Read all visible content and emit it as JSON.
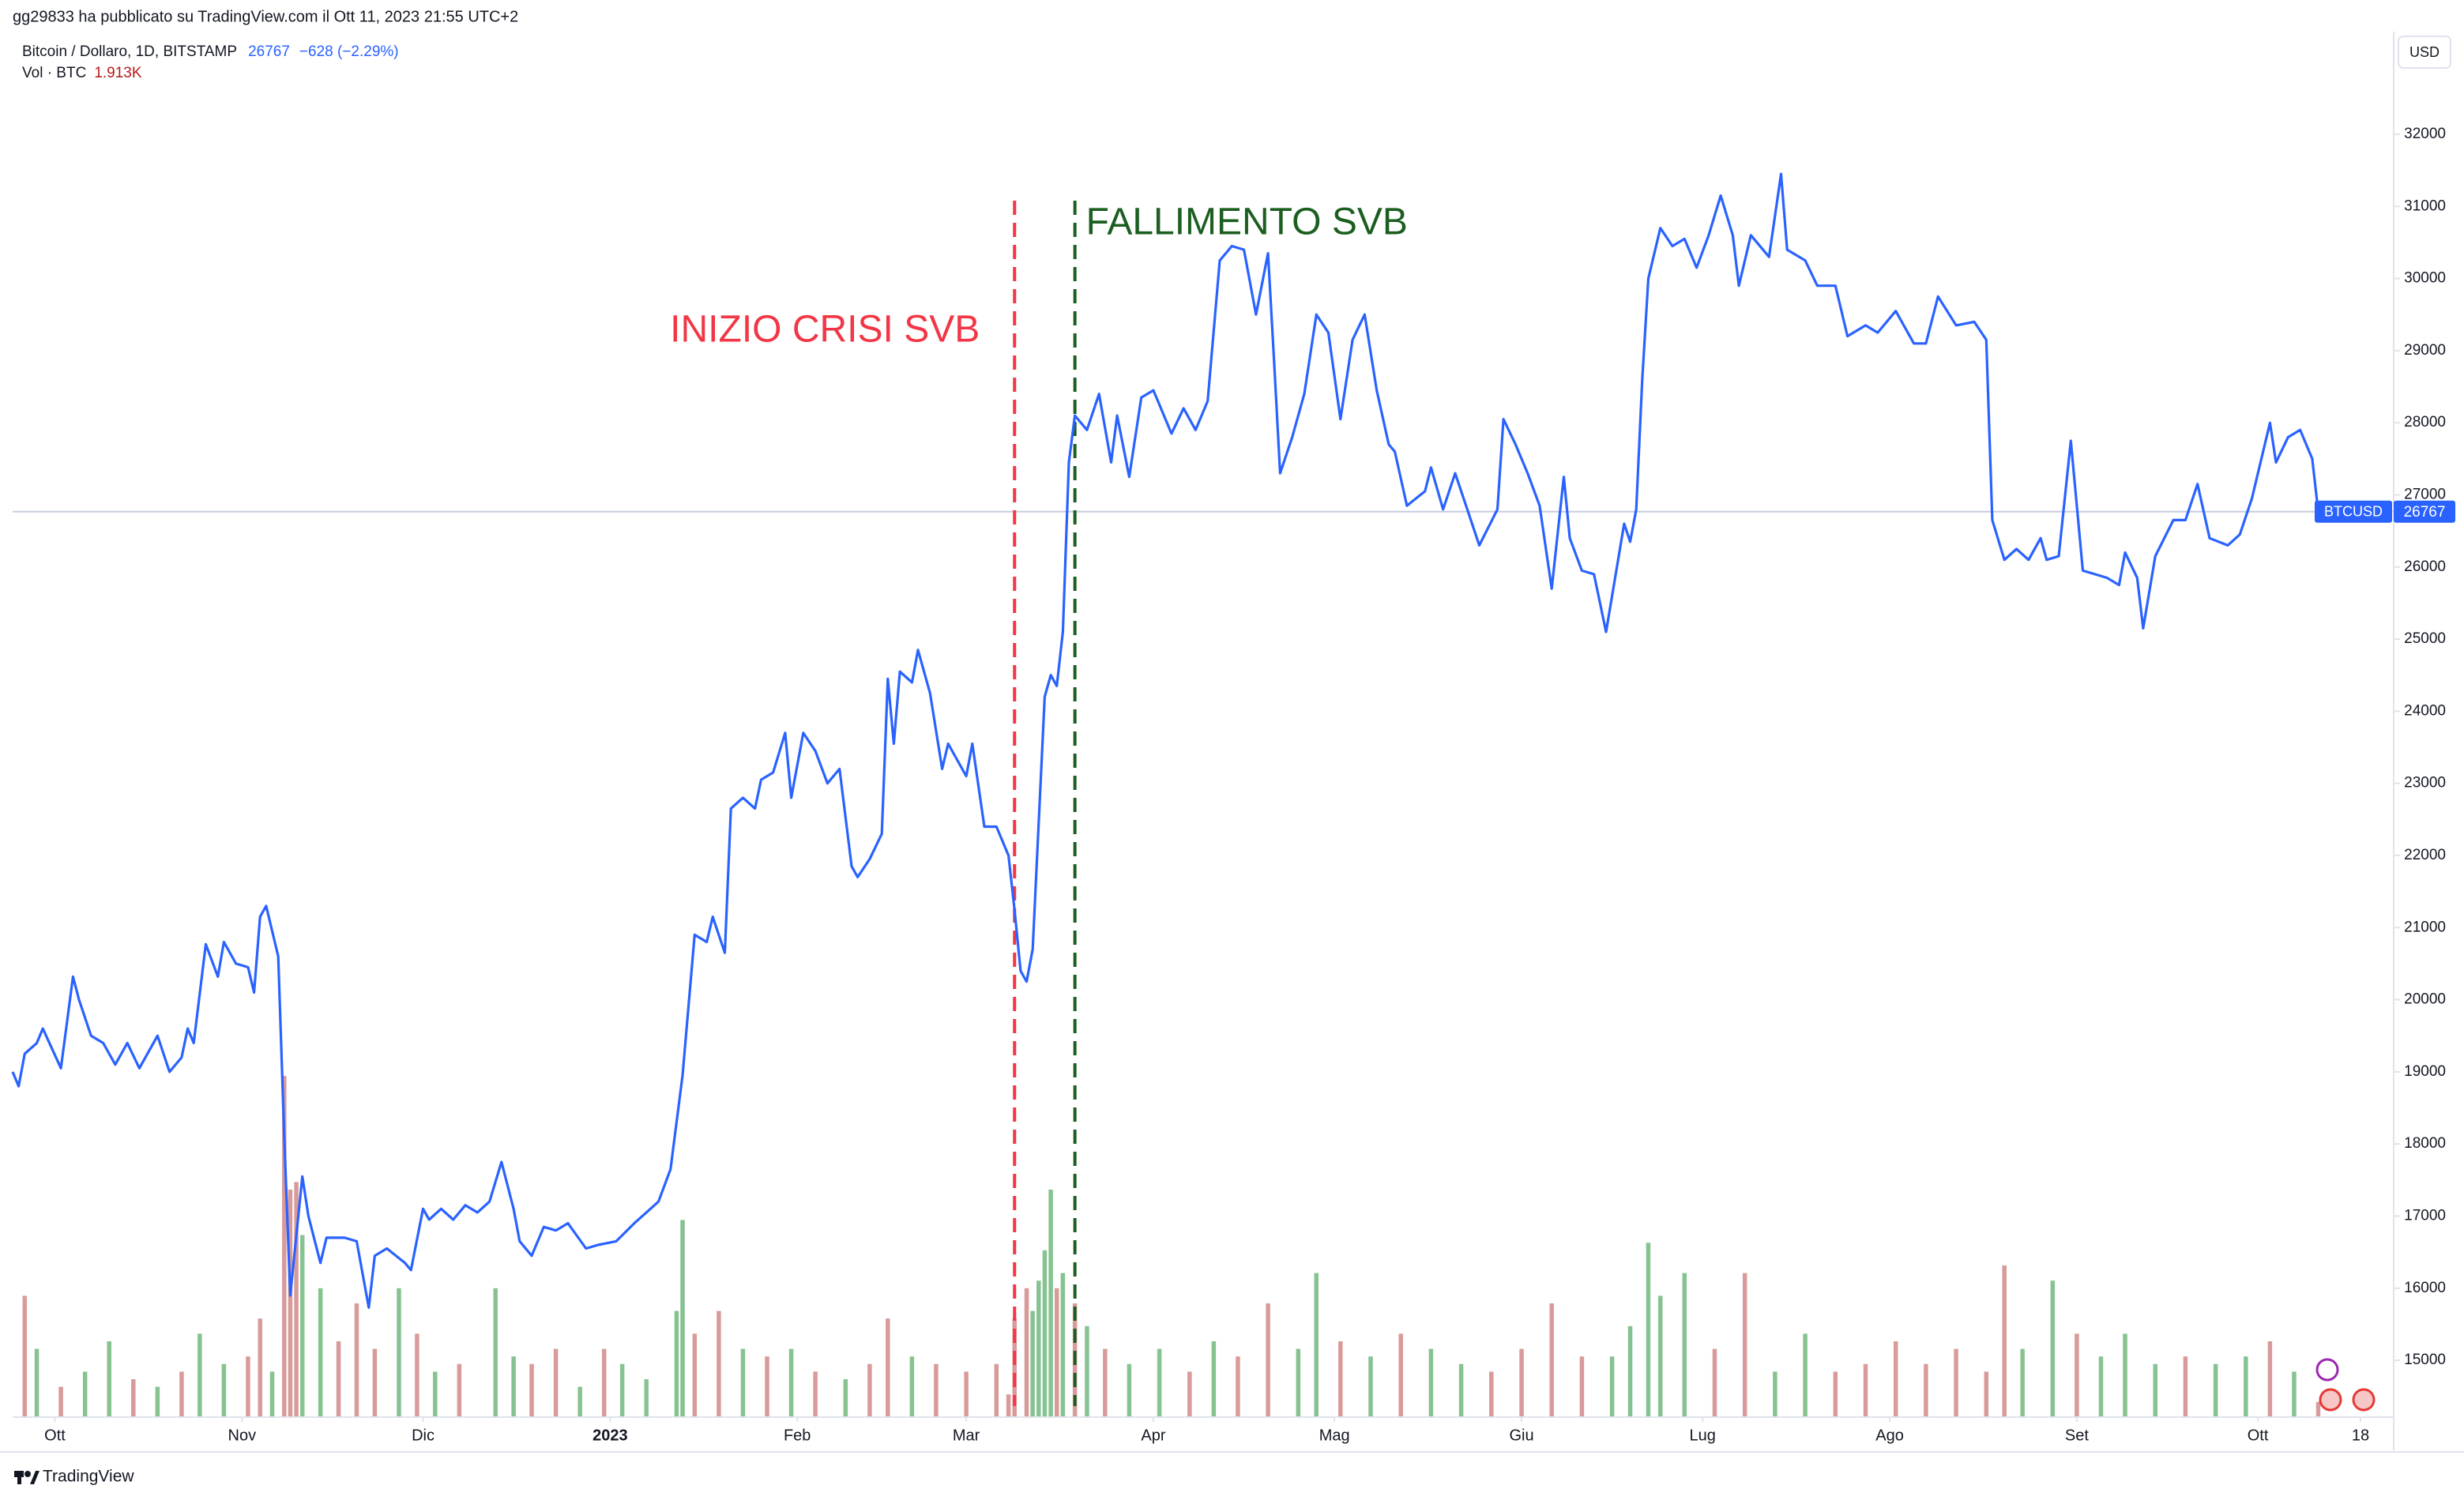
{
  "header": {
    "publisher": "gg29833 ha pubblicato su TradingView.com il Ott 11, 2023 21:55 UTC+2",
    "change": "−628 (−2.29%)",
    "volume_label": "Vol · BTC",
    "volume_last": "1.913K",
    "currency": "USD",
    "footer": "TradingView",
    "symbol_tag": "BTCUSD"
  },
  "chart_data": {
    "type": "line",
    "title": "Bitcoin / Dollaro, 1D, BITSTAMP",
    "last": 26767,
    "grid": false,
    "xlim": [
      0,
      394.5
    ],
    "ylim": [
      14212,
      33424
    ],
    "yticks": [
      15000,
      16000,
      17000,
      18000,
      19000,
      20000,
      21000,
      22000,
      23000,
      24000,
      25000,
      26000,
      27000,
      28000,
      29000,
      30000,
      31000,
      32000
    ],
    "xticks": [
      {
        "value": 7,
        "label": "Ott"
      },
      {
        "value": 38,
        "label": "Nov"
      },
      {
        "value": 68,
        "label": "Dic"
      },
      {
        "value": 99,
        "label": "2023"
      },
      {
        "value": 130,
        "label": "Feb"
      },
      {
        "value": 158,
        "label": "Mar"
      },
      {
        "value": 189,
        "label": "Apr"
      },
      {
        "value": 219,
        "label": "Mag"
      },
      {
        "value": 250,
        "label": "Giu"
      },
      {
        "value": 280,
        "label": "Lug"
      },
      {
        "value": 311,
        "label": "Ago"
      },
      {
        "value": 342,
        "label": "Set"
      },
      {
        "value": 372,
        "label": "Ott"
      },
      {
        "value": 389,
        "label": "18"
      }
    ],
    "series": [
      {
        "color": "#2962ff",
        "x": [
          0,
          1,
          2,
          4,
          5,
          8,
          10,
          11,
          13,
          15,
          17,
          19,
          21,
          24,
          26,
          28,
          29,
          30,
          32,
          34,
          35,
          37,
          39,
          40,
          41,
          42,
          44,
          45,
          46,
          48,
          49,
          51,
          52,
          55,
          57,
          59,
          60,
          62,
          65,
          66,
          68,
          69,
          71,
          73,
          75,
          77,
          79,
          81,
          83,
          84,
          86,
          88,
          90,
          92,
          95,
          97,
          100,
          103,
          105,
          107,
          109,
          111,
          113,
          115,
          116,
          118,
          119,
          121,
          123,
          124,
          126,
          128,
          129,
          131,
          133,
          135,
          137,
          139,
          140,
          142,
          144,
          145,
          146,
          147,
          149,
          150,
          152,
          154,
          155,
          158,
          159,
          161,
          163,
          165,
          166,
          167,
          168,
          169,
          171,
          172,
          173,
          174,
          175,
          176,
          178,
          180,
          182,
          183,
          185,
          187,
          189,
          192,
          194,
          196,
          198,
          200,
          202,
          204,
          206,
          208,
          209,
          210,
          212,
          214,
          216,
          218,
          220,
          222,
          224,
          226,
          228,
          229,
          231,
          234,
          235,
          237,
          239,
          241,
          243,
          246,
          247,
          249,
          251,
          253,
          255,
          257,
          258,
          260,
          262,
          264,
          267,
          268,
          269,
          270,
          271,
          273,
          275,
          277,
          279,
          281,
          283,
          285,
          286,
          288,
          291,
          293,
          294,
          297,
          299,
          302,
          304,
          307,
          309,
          312,
          315,
          317,
          319,
          322,
          325,
          327,
          328,
          330,
          332,
          334,
          336,
          337,
          339,
          341,
          343,
          345,
          347,
          349,
          350,
          352,
          353,
          355,
          358,
          360,
          362,
          364,
          367,
          369,
          371,
          374,
          375,
          377,
          379,
          381,
          382
        ],
        "values": [
          19000,
          18800,
          19250,
          19400,
          19600,
          19050,
          20320,
          20000,
          19500,
          19400,
          19100,
          19400,
          19050,
          19500,
          19000,
          19200,
          19600,
          19400,
          20770,
          20320,
          20800,
          20500,
          20450,
          20100,
          21150,
          21300,
          20600,
          18100,
          15900,
          17550,
          17000,
          16350,
          16700,
          16700,
          16650,
          15730,
          16450,
          16550,
          16350,
          16250,
          17100,
          16950,
          17100,
          16950,
          17150,
          17050,
          17200,
          17750,
          17100,
          16650,
          16450,
          16850,
          16800,
          16900,
          16550,
          16600,
          16650,
          16900,
          17050,
          17200,
          17650,
          18950,
          20900,
          20800,
          21150,
          20650,
          22650,
          22800,
          22650,
          23050,
          23150,
          23700,
          22800,
          23700,
          23450,
          23000,
          23200,
          21850,
          21700,
          21950,
          22300,
          24450,
          23550,
          24550,
          24400,
          24850,
          24250,
          23200,
          23550,
          23100,
          23550,
          22400,
          22400,
          22000,
          21250,
          20400,
          20250,
          20700,
          24200,
          24500,
          24350,
          25100,
          27450,
          28100,
          27900,
          28400,
          27450,
          28100,
          27250,
          28350,
          28450,
          27850,
          28200,
          27900,
          28300,
          30250,
          30450,
          30400,
          29500,
          30350,
          28850,
          27300,
          27800,
          28400,
          29500,
          29250,
          28050,
          29150,
          29500,
          28450,
          27700,
          27600,
          26850,
          27050,
          27380,
          26800,
          27300,
          26800,
          26300,
          26800,
          28050,
          27700,
          27300,
          26850,
          25700,
          27250,
          26400,
          25950,
          25900,
          25100,
          26600,
          26350,
          26800,
          28600,
          30000,
          30700,
          30450,
          30550,
          30150,
          30600,
          31150,
          30600,
          29900,
          30600,
          30300,
          31450,
          30400,
          30250,
          29900,
          29900,
          29200,
          29350,
          29250,
          29550,
          29100,
          29100,
          29750,
          29350,
          29400,
          29150,
          26650,
          26100,
          26250,
          26100,
          26400,
          26100,
          26150,
          27750,
          25950,
          25900,
          25850,
          25750,
          26200,
          25850,
          25150,
          26150,
          26650,
          26650,
          27150,
          26400,
          26300,
          26450,
          26950,
          28000,
          27450,
          27800,
          27900,
          27500,
          26767
        ]
      }
    ],
    "volume": {
      "ylim": [
        0,
        50
      ],
      "x": [
        2,
        4,
        8,
        12,
        16,
        20,
        24,
        28,
        31,
        35,
        39,
        41,
        43,
        45,
        46,
        47,
        48,
        51,
        54,
        57,
        60,
        64,
        67,
        70,
        74,
        80,
        83,
        86,
        90,
        94,
        98,
        101,
        105,
        110,
        111,
        113,
        117,
        121,
        125,
        129,
        133,
        138,
        142,
        145,
        149,
        153,
        158,
        163,
        165,
        166,
        168,
        169,
        170,
        171,
        172,
        173,
        174,
        176,
        178,
        181,
        185,
        190,
        195,
        199,
        203,
        208,
        213,
        216,
        220,
        225,
        230,
        235,
        240,
        245,
        250,
        255,
        260,
        265,
        268,
        271,
        273,
        277,
        282,
        287,
        292,
        297,
        302,
        307,
        312,
        317,
        322,
        327,
        330,
        333,
        338,
        342,
        346,
        350,
        355,
        360,
        365,
        370,
        374,
        378,
        382
      ],
      "values": [
        16,
        9,
        4,
        6,
        10,
        5,
        4,
        6,
        11,
        7,
        8,
        13,
        6,
        45,
        30,
        31,
        24,
        17,
        10,
        15,
        9,
        17,
        11,
        6,
        7,
        17,
        8,
        7,
        9,
        4,
        9,
        7,
        5,
        14,
        26,
        11,
        14,
        9,
        8,
        9,
        6,
        5,
        7,
        13,
        8,
        7,
        6,
        7,
        3,
        13,
        17,
        14,
        18,
        22,
        30,
        17,
        19,
        15,
        12,
        9,
        7,
        9,
        6,
        10,
        8,
        15,
        9,
        19,
        10,
        8,
        11,
        9,
        7,
        6,
        9,
        15,
        8,
        8,
        12,
        23,
        16,
        19,
        9,
        19,
        6,
        11,
        6,
        7,
        10,
        7,
        9,
        6,
        20,
        9,
        18,
        11,
        8,
        11,
        7,
        8,
        7,
        8,
        10,
        6,
        2
      ],
      "colors": [
        "#d99a9a",
        "#86c391",
        "#d99a9a",
        "#86c391",
        "#86c391",
        "#d99a9a",
        "#86c391",
        "#d99a9a",
        "#86c391",
        "#86c391",
        "#d99a9a",
        "#d99a9a",
        "#86c391",
        "#d99a9a",
        "#d99a9a",
        "#d99a9a",
        "#86c391",
        "#86c391",
        "#d99a9a",
        "#d99a9a",
        "#d99a9a",
        "#86c391",
        "#d99a9a",
        "#86c391",
        "#d99a9a",
        "#86c391",
        "#86c391",
        "#d99a9a",
        "#d99a9a",
        "#86c391",
        "#d99a9a",
        "#86c391",
        "#86c391",
        "#86c391",
        "#86c391",
        "#d99a9a",
        "#d99a9a",
        "#86c391",
        "#d99a9a",
        "#86c391",
        "#d99a9a",
        "#86c391",
        "#d99a9a",
        "#d99a9a",
        "#86c391",
        "#d99a9a",
        "#d99a9a",
        "#d99a9a",
        "#d99a9a",
        "#d99a9a",
        "#d99a9a",
        "#86c391",
        "#86c391",
        "#86c391",
        "#86c391",
        "#d99a9a",
        "#86c391",
        "#d99a9a",
        "#86c391",
        "#d99a9a",
        "#86c391",
        "#86c391",
        "#d99a9a",
        "#86c391",
        "#d99a9a",
        "#d99a9a",
        "#86c391",
        "#86c391",
        "#d99a9a",
        "#86c391",
        "#d99a9a",
        "#86c391",
        "#86c391",
        "#d99a9a",
        "#d99a9a",
        "#d99a9a",
        "#d99a9a",
        "#86c391",
        "#86c391",
        "#86c391",
        "#86c391",
        "#86c391",
        "#d99a9a",
        "#d99a9a",
        "#86c391",
        "#86c391",
        "#d99a9a",
        "#d99a9a",
        "#d99a9a",
        "#d99a9a",
        "#d99a9a",
        "#d99a9a",
        "#d99a9a",
        "#86c391",
        "#86c391",
        "#d99a9a",
        "#86c391",
        "#86c391",
        "#86c391",
        "#d99a9a",
        "#86c391",
        "#86c391",
        "#d99a9a",
        "#86c391",
        "#d99a9a"
      ]
    },
    "annotations": [
      {
        "text": "INIZIO CRISI SVB",
        "x": 166,
        "color": "#f23645"
      },
      {
        "text": "FALLIMENTO SVB",
        "x": 176,
        "color": "#1b5e20"
      }
    ]
  }
}
